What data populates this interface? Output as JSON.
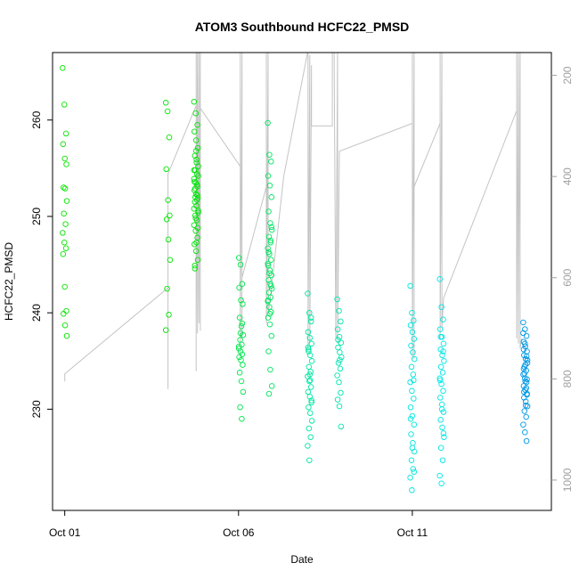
{
  "chart_data": {
    "type": "scatter",
    "title": "ATOM3 Southbound HCFC22_PMSD",
    "xlabel": "Date",
    "ylabel": "HCFC22_PMSD",
    "x_ticks": [
      "Oct 01",
      "Oct 06",
      "Oct 11"
    ],
    "x_tick_values": [
      1,
      6,
      11
    ],
    "xlim": [
      0.65,
      15.0
    ],
    "ylim": [
      219.5,
      267.0
    ],
    "y_ticks": [
      230,
      240,
      250,
      260
    ],
    "right_axis": {
      "ticks": [
        200,
        400,
        600,
        800,
        1000
      ],
      "lim": [
        1060,
        155
      ],
      "color": "#a0a0a0"
    },
    "grid": false,
    "legend": "none",
    "colors": {
      "hue_start": 115,
      "hue_end": 205
    },
    "groups": [
      {
        "x": 1.0,
        "hue": 118,
        "vals": [
          265.4,
          261.6,
          258.6,
          257.5,
          256.0,
          255.4,
          253.0,
          252.9,
          251.6,
          250.3,
          249.2,
          248.3,
          247.3,
          246.7,
          246.1,
          242.7,
          240.2,
          239.9,
          238.7,
          237.6
        ]
      },
      {
        "x": 3.97,
        "hue": 120,
        "vals": [
          261.8,
          260.9,
          258.2,
          254.9,
          251.7,
          250.1,
          249.7,
          247.6,
          245.5,
          242.5,
          239.8,
          238.2
        ]
      },
      {
        "x": 4.78,
        "hue": 122,
        "vals": [
          261.9,
          260.7,
          259.5,
          258.8,
          257.9,
          257.1,
          256.3,
          255.6,
          255.2,
          254.8,
          254.4,
          253.9,
          253.5,
          253.1,
          252.7,
          252.3,
          251.9,
          251.5,
          251.1,
          250.6,
          250.1,
          249.6,
          249.1,
          248.5,
          247.8,
          247.1,
          246.4,
          245.5,
          244.6,
          255.9,
          254.2,
          252.9,
          251.7,
          250.8,
          249.8,
          252.2,
          253.6,
          256.8,
          248.8,
          244.9,
          247.3,
          250.4,
          252.0,
          253.3,
          254.8
        ]
      },
      {
        "x": 6.07,
        "hue": 140,
        "vals": [
          245.7,
          245.0,
          243.0,
          242.6,
          241.3,
          240.9,
          239.5,
          238.6,
          237.7,
          237.2,
          236.7,
          236.3,
          236.0,
          235.7,
          235.4,
          235.1,
          234.6,
          233.8,
          232.9,
          231.8,
          230.2,
          229.0,
          236.5,
          237.9,
          238.9
        ]
      },
      {
        "x": 6.9,
        "hue": 145,
        "vals": [
          259.7,
          256.4,
          255.7,
          254.2,
          253.2,
          252.0,
          250.5,
          249.3,
          248.6,
          247.9,
          247.3,
          246.7,
          246.1,
          245.5,
          244.9,
          244.4,
          243.9,
          243.4,
          243.0,
          242.5,
          242.1,
          241.6,
          241.2,
          240.6,
          240.1,
          239.5,
          238.8,
          237.6,
          236.0,
          234.1,
          232.4,
          231.6,
          247.5,
          245.1,
          244.1,
          242.8,
          241.3,
          239.9,
          248.9,
          246.3
        ]
      },
      {
        "x": 8.05,
        "hue": 162,
        "vals": [
          242.0,
          240.0,
          239.1,
          238.0,
          237.4,
          236.8,
          236.2,
          235.6,
          235.0,
          234.4,
          233.9,
          233.4,
          232.9,
          232.3,
          231.8,
          231.3,
          230.7,
          230.2,
          229.6,
          228.8,
          228.0,
          227.1,
          226.2,
          224.7,
          239.5,
          236.4,
          233.6,
          230.9,
          236.0,
          233.0
        ]
      },
      {
        "x": 8.9,
        "hue": 166,
        "vals": [
          241.4,
          240.2,
          239.1,
          238.3,
          237.5,
          236.9,
          236.4,
          235.9,
          235.4,
          234.8,
          234.2,
          233.5,
          232.8,
          231.7,
          231.0,
          230.3,
          228.2,
          237.2,
          235.1
        ]
      },
      {
        "x": 11.0,
        "hue": 178,
        "vals": [
          242.8,
          240.0,
          239.2,
          238.7,
          238.0,
          237.3,
          236.6,
          235.9,
          235.2,
          234.4,
          233.6,
          232.8,
          231.9,
          231.1,
          230.2,
          229.3,
          228.4,
          227.4,
          226.5,
          225.6,
          224.7,
          223.8,
          222.9,
          221.6,
          233.0,
          229.0,
          226.0,
          223.5
        ]
      },
      {
        "x": 11.85,
        "hue": 180,
        "vals": [
          243.5,
          240.6,
          239.3,
          238.3,
          237.5,
          236.8,
          236.2,
          235.6,
          235.0,
          234.4,
          233.8,
          233.2,
          232.6,
          231.9,
          231.2,
          230.5,
          229.7,
          228.9,
          228.1,
          227.1,
          226.0,
          224.7,
          223.1,
          222.3,
          236.0,
          233.0,
          230.0,
          227.5,
          237.5
        ]
      },
      {
        "x": 14.25,
        "hue": 200,
        "vals": [
          239.0,
          238.3,
          237.6,
          237.0,
          236.5,
          236.0,
          235.6,
          235.2,
          234.8,
          234.4,
          234.0,
          233.6,
          233.2,
          232.8,
          232.4,
          232.0,
          231.6,
          231.2,
          230.8,
          230.3,
          229.8,
          229.2,
          228.4,
          227.6,
          226.7,
          236.2,
          234.6,
          233.1,
          231.8,
          230.4,
          235.1,
          233.7,
          232.2,
          237.9,
          236.8,
          235.5,
          234.2,
          232.9,
          231.5
        ]
      }
    ],
    "pressure_trace": [
      [
        1.0,
        805
      ],
      [
        1.0,
        790
      ],
      [
        3.97,
        620
      ],
      [
        3.97,
        590
      ],
      [
        3.97,
        820
      ],
      [
        3.97,
        395
      ],
      [
        4.78,
        260
      ],
      [
        4.78,
        785
      ],
      [
        4.78,
        150
      ],
      [
        4.78,
        700
      ],
      [
        4.82,
        150
      ],
      [
        4.82,
        710
      ],
      [
        4.86,
        150
      ],
      [
        4.86,
        690
      ],
      [
        4.9,
        150
      ],
      [
        4.9,
        705
      ],
      [
        4.9,
        265
      ],
      [
        6.05,
        380
      ],
      [
        6.05,
        150
      ],
      [
        6.05,
        730
      ],
      [
        6.1,
        150
      ],
      [
        6.1,
        720
      ],
      [
        6.1,
        600
      ],
      [
        6.8,
        420
      ],
      [
        6.8,
        150
      ],
      [
        6.8,
        690
      ],
      [
        6.85,
        150
      ],
      [
        6.85,
        670
      ],
      [
        6.9,
        650
      ],
      [
        7.3,
        400
      ],
      [
        8.0,
        150
      ],
      [
        8.0,
        740
      ],
      [
        8.05,
        160
      ],
      [
        8.05,
        730
      ],
      [
        8.1,
        180
      ],
      [
        8.1,
        300
      ],
      [
        8.7,
        300
      ],
      [
        8.7,
        150
      ],
      [
        8.75,
        150
      ],
      [
        8.8,
        720
      ],
      [
        8.85,
        150
      ],
      [
        8.85,
        730
      ],
      [
        8.9,
        350
      ],
      [
        11.0,
        295
      ],
      [
        11.0,
        150
      ],
      [
        11.0,
        760
      ],
      [
        11.05,
        150
      ],
      [
        11.05,
        760
      ],
      [
        11.05,
        420
      ],
      [
        11.8,
        295
      ],
      [
        11.8,
        150
      ],
      [
        11.8,
        720
      ],
      [
        11.85,
        150
      ],
      [
        11.85,
        700
      ],
      [
        11.9,
        640
      ],
      [
        14.0,
        270
      ],
      [
        14.0,
        150
      ],
      [
        14.0,
        720
      ],
      [
        14.05,
        150
      ],
      [
        14.05,
        730
      ],
      [
        14.1,
        150
      ],
      [
        14.1,
        740
      ],
      [
        14.15,
        720
      ]
    ]
  }
}
